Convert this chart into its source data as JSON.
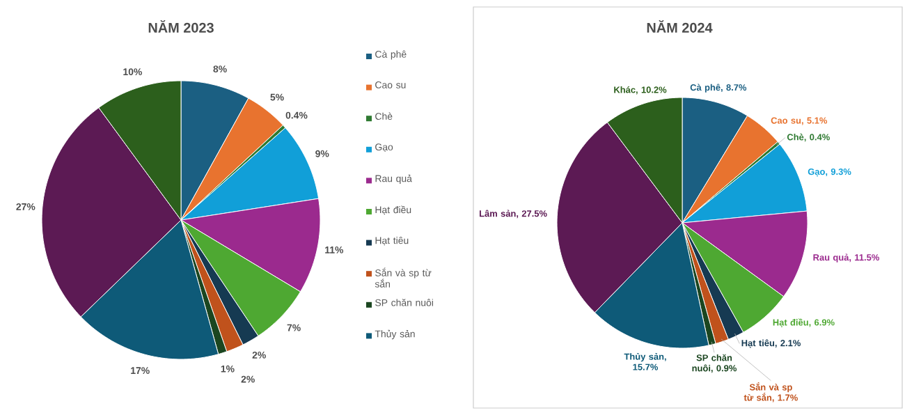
{
  "chart_data": [
    {
      "type": "pie",
      "title": "NĂM 2023",
      "legend": "right",
      "categories": [
        "Cà phê",
        "Cao su",
        "Chè",
        "Gạo",
        "Rau quả",
        "Hạt điều",
        "Hạt tiêu",
        "Sắn và sp từ sắn",
        "SP chăn nuôi",
        "Thủy sản",
        null,
        null
      ],
      "values": [
        8,
        5,
        0.4,
        9,
        11,
        7,
        2,
        2,
        1,
        17,
        27,
        10
      ],
      "value_labels": [
        "8%",
        "5%",
        "0.4%",
        "9%",
        "11%",
        "7%",
        "2%",
        "2%",
        "1%",
        "17%",
        "27%",
        "10%"
      ],
      "colors": [
        "#1b5f82",
        "#e8732f",
        "#2f7a32",
        "#119fd8",
        "#9b2a8e",
        "#4ea832",
        "#163a52",
        "#c0521c",
        "#1b4620",
        "#0e5a78",
        "#5c1a54",
        "#2c5f1c"
      ]
    },
    {
      "type": "pie",
      "title": "NĂM 2024",
      "legend": false,
      "categories": [
        "Cà phê",
        "Cao su",
        "Chè",
        "Gạo",
        "Rau quả",
        "Hạt điều",
        "Hạt tiêu",
        "Sắn và sp từ sắn",
        "SP chăn nuôi",
        "Thủy sản",
        "Lâm sản",
        "Khác"
      ],
      "values": [
        8.7,
        5.1,
        0.4,
        9.3,
        11.5,
        6.9,
        2.1,
        1.7,
        0.9,
        15.7,
        27.5,
        10.2
      ],
      "value_labels": [
        ", 8.7%",
        ", 5.1%",
        ", 0.4%",
        ", 9.3%",
        ", 11.5%",
        ", 6.9%",
        ", 2.1%",
        ", 1.7%",
        ", 0.9%",
        ", 15.7%",
        ", 27.5%",
        ", 10.2%"
      ],
      "colors": [
        "#1b5f82",
        "#e8732f",
        "#2f7a32",
        "#119fd8",
        "#9b2a8e",
        "#4ea832",
        "#163a52",
        "#c0521c",
        "#1b4620",
        "#0e5a78",
        "#5c1a54",
        "#2c5f1c"
      ]
    }
  ]
}
